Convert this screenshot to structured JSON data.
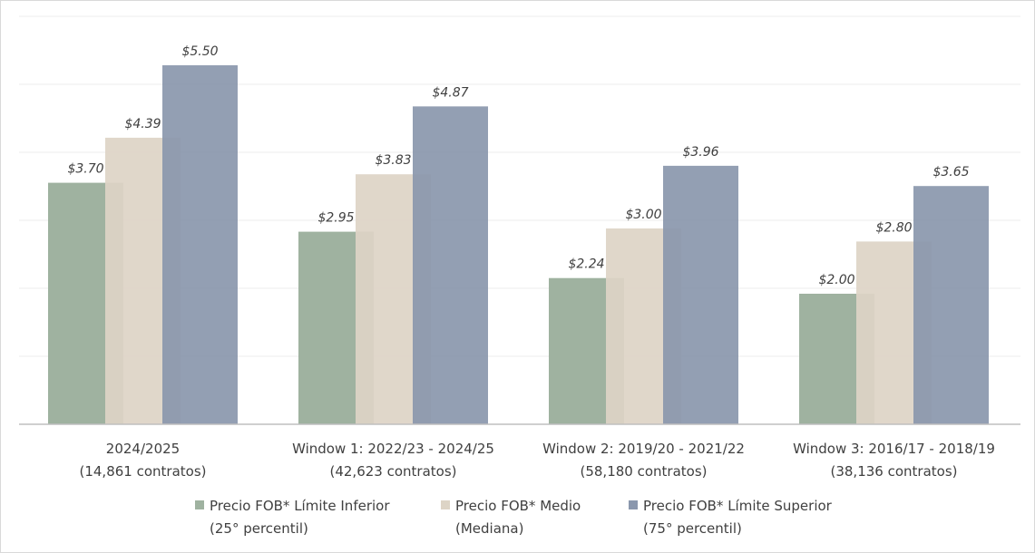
{
  "chart_data": {
    "type": "bar",
    "title": "",
    "xlabel": "",
    "ylabel": "",
    "ylim": [
      0,
      6.25
    ],
    "grid": true,
    "legend_position": "bottom",
    "categories": [
      {
        "line1": "2024/2025",
        "line2": "(14,861 contratos)"
      },
      {
        "line1": "Window 1: 2022/23 - 2024/25",
        "line2": "(42,623 contratos)"
      },
      {
        "line1": "Window 2: 2019/20 - 2021/22",
        "line2": "(58,180 contratos)"
      },
      {
        "line1": "Window 3: 2016/17 - 2018/19",
        "line2": "(38,136 contratos)"
      }
    ],
    "series": [
      {
        "name_line1": "Precio FOB* Límite Inferior",
        "name_line2": "(25° percentil)",
        "color": "#9fb2a0",
        "opacity": 1.0,
        "values": [
          3.7,
          2.95,
          2.24,
          2.0
        ],
        "labels": [
          "$3.70",
          "$2.95",
          "$2.24",
          "$2.00"
        ]
      },
      {
        "name_line1": "Precio FOB* Medio",
        "name_line2": "(Mediana)",
        "color": "#ddd4c6",
        "opacity": 0.92,
        "values": [
          4.39,
          3.83,
          3.0,
          2.8
        ],
        "labels": [
          "$4.39",
          "$3.83",
          "$3.00",
          "$2.80"
        ]
      },
      {
        "name_line1": "Precio FOB* Límite Superior",
        "name_line2": "(75° percentil)",
        "color": "#8a97ad",
        "opacity": 0.92,
        "values": [
          5.5,
          4.87,
          3.96,
          3.65
        ],
        "labels": [
          "$5.50",
          "$4.87",
          "$3.96",
          "$3.65"
        ]
      }
    ]
  }
}
